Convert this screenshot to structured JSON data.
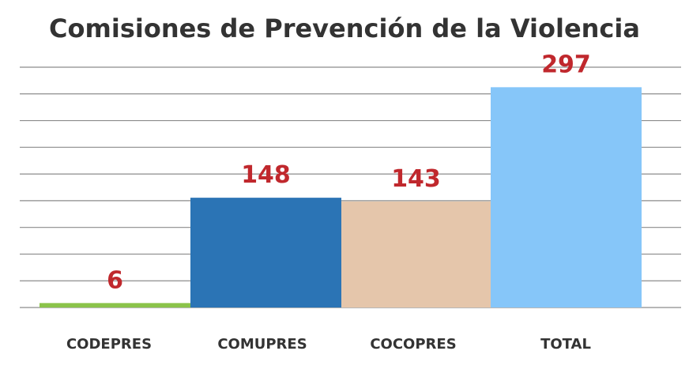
{
  "chart_data": {
    "type": "bar",
    "title": "Comisiones de Prevención de la Violencia",
    "xlabel": "",
    "ylabel": "",
    "categories": [
      "CODEPRES",
      "COMUPRES",
      "COCOPRES",
      "TOTAL"
    ],
    "values": [
      6,
      148,
      143,
      297
    ],
    "data_labels": [
      "6",
      "148",
      "143",
      "297"
    ],
    "bar_colors": [
      "#8bc34a",
      "#2b74b5",
      "#e5c6ab",
      "#86c6f9"
    ],
    "label_color": "#c0282d",
    "ylim": [
      0,
      324
    ],
    "grid": true,
    "y_tick_labels_shown": false,
    "legend": "none"
  }
}
